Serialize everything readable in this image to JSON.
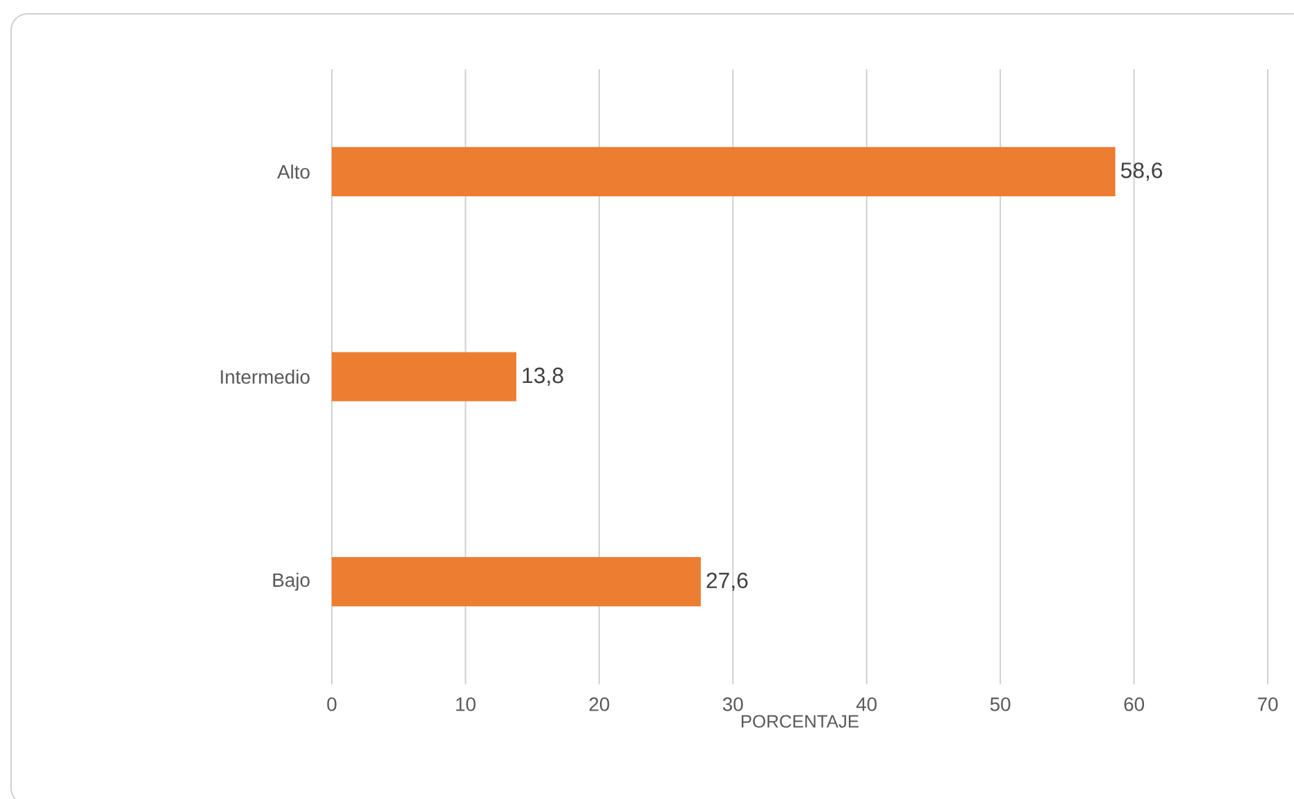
{
  "chart_data": {
    "type": "bar",
    "orientation": "horizontal",
    "xlabel": "PORCENTAJE",
    "categories": [
      "Alto",
      "Intermedio",
      "Bajo"
    ],
    "values": [
      58.6,
      13.8,
      27.6
    ],
    "value_labels": [
      "58,6",
      "13,8",
      "27,6"
    ],
    "color": "#ed7d31",
    "xlim": [
      0,
      70
    ],
    "xticks": [
      0,
      10,
      20,
      30,
      40,
      50,
      60,
      70
    ],
    "grid": "x"
  }
}
